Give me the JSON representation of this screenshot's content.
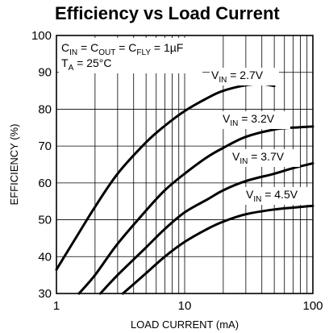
{
  "chart_data": {
    "type": "line",
    "title": "Efficiency vs Load Current",
    "xlabel": "LOAD CURRENT (mA)",
    "ylabel": "EFFICIENCY (%)",
    "xscale": "log",
    "xlim": [
      1,
      100
    ],
    "ylim": [
      30,
      100
    ],
    "x_ticks": [
      "1",
      "10",
      "100"
    ],
    "y_ticks": [
      "30",
      "40",
      "50",
      "60",
      "70",
      "80",
      "90",
      "100"
    ],
    "grid": true,
    "conditions": {
      "line1": {
        "parts": [
          "C",
          "IN",
          " = C",
          "OUT",
          " = C",
          "FLY",
          " = 1µF"
        ]
      },
      "line2": {
        "parts": [
          "T",
          "A",
          " = 25°C"
        ]
      }
    },
    "series": [
      {
        "name": "VIN = 2.7V",
        "label_main": "V",
        "label_sub": "IN",
        "label_rest": " = 2.7V",
        "x": [
          1,
          1.5,
          2,
          3,
          5,
          7,
          10,
          15,
          20,
          30,
          40,
          50
        ],
        "y": [
          36.5,
          46.5,
          53.5,
          62.5,
          71,
          75.5,
          79.5,
          83,
          85,
          86.5,
          86.8,
          86.3
        ]
      },
      {
        "name": "VIN = 3.2V",
        "label_main": "V",
        "label_sub": "IN",
        "label_rest": " = 3.2V",
        "x": [
          1.5,
          2,
          3,
          5,
          7,
          10,
          15,
          20,
          30,
          50,
          70,
          100
        ],
        "y": [
          30,
          35,
          43.5,
          52.5,
          58,
          62.5,
          67,
          69.5,
          72.5,
          74.5,
          75,
          75.3
        ]
      },
      {
        "name": "VIN = 3.7V",
        "label_main": "V",
        "label_sub": "IN",
        "label_rest": " = 3.7V",
        "x": [
          2.2,
          3,
          5,
          7,
          10,
          15,
          20,
          30,
          50,
          70,
          100
        ],
        "y": [
          30,
          35,
          42.5,
          47.5,
          52,
          55.5,
          58,
          60.5,
          62.5,
          64,
          65.3
        ]
      },
      {
        "name": "VIN = 4.5V",
        "label_main": "V",
        "label_sub": "IN",
        "label_rest": " = 4.5V",
        "x": [
          3.3,
          5,
          7,
          10,
          15,
          20,
          30,
          50,
          70,
          100
        ],
        "y": [
          30,
          35.5,
          40,
          44,
          47.5,
          49.5,
          51.5,
          52.8,
          53.3,
          53.8
        ]
      }
    ]
  }
}
